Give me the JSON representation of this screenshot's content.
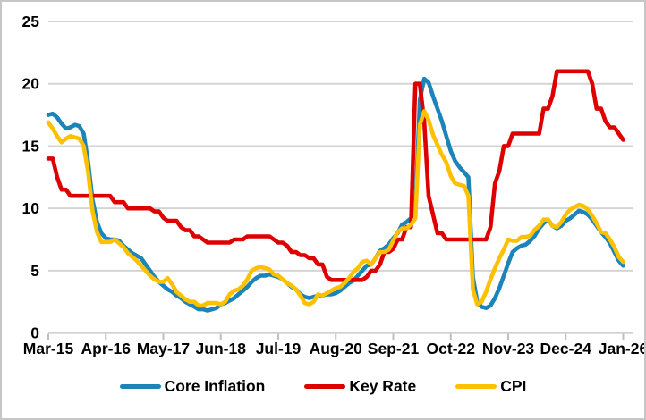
{
  "chart_data": {
    "type": "line",
    "title": "",
    "xlabel": "",
    "ylabel": "",
    "ylim": [
      0,
      25
    ],
    "y_ticks": [
      0,
      5,
      10,
      15,
      20,
      25
    ],
    "grid": "horizontal-only",
    "legend_position": "bottom-center",
    "x_unit": "monthly",
    "x_range": "Mar-2015 to Jan-2026",
    "x_tick_labels": [
      "Mar-15",
      "Apr-16",
      "May-17",
      "Jun-18",
      "Jul-19",
      "Aug-20",
      "Sep-21",
      "Oct-22",
      "Nov-23",
      "Dec-24",
      "Jan-26"
    ],
    "months_per_tick": 13,
    "series": [
      {
        "name": "Core Inflation",
        "color": "#1b84b8",
        "values": [
          17.5,
          17.6,
          17.3,
          16.8,
          16.4,
          16.5,
          16.7,
          16.6,
          16.0,
          13.7,
          10.7,
          8.9,
          8.0,
          7.6,
          7.5,
          7.5,
          7.4,
          7.0,
          6.7,
          6.4,
          6.2,
          6.0,
          5.5,
          5.0,
          4.5,
          4.1,
          3.8,
          3.5,
          3.3,
          3.0,
          2.8,
          2.5,
          2.3,
          2.1,
          1.9,
          1.9,
          1.8,
          1.9,
          2.0,
          2.3,
          2.4,
          2.6,
          2.8,
          3.1,
          3.4,
          3.7,
          4.1,
          4.4,
          4.6,
          4.6,
          4.7,
          4.6,
          4.5,
          4.3,
          4.0,
          3.7,
          3.5,
          3.1,
          2.9,
          2.8,
          2.9,
          3.0,
          3.0,
          3.1,
          3.1,
          3.2,
          3.4,
          3.7,
          4.0,
          4.2,
          4.6,
          5.0,
          5.4,
          5.5,
          6.0,
          6.6,
          6.8,
          7.1,
          7.6,
          8.0,
          8.7,
          8.9,
          9.2,
          9.7,
          18.7,
          20.4,
          20.1,
          19.0,
          18.0,
          17.0,
          15.8,
          14.6,
          13.8,
          13.3,
          12.9,
          12.5,
          4.5,
          2.5,
          2.1,
          2.0,
          2.2,
          2.8,
          3.6,
          4.6,
          5.6,
          6.5,
          6.8,
          7.0,
          7.1,
          7.4,
          7.8,
          8.4,
          8.8,
          9.1,
          8.6,
          8.4,
          8.6,
          9.0,
          9.2,
          9.5,
          9.8,
          9.7,
          9.5,
          9.1,
          8.6,
          8.1,
          7.7,
          7.2,
          6.5,
          5.8,
          5.4
        ]
      },
      {
        "name": "Key Rate",
        "color": "#de0000",
        "values": [
          14,
          14,
          12.5,
          11.5,
          11.5,
          11,
          11,
          11,
          11,
          11,
          11,
          11,
          11,
          11,
          11,
          10.5,
          10.5,
          10.5,
          10,
          10,
          10,
          10,
          10,
          10,
          9.75,
          9.75,
          9.25,
          9,
          9,
          9,
          8.5,
          8.25,
          8.25,
          7.75,
          7.75,
          7.5,
          7.25,
          7.25,
          7.25,
          7.25,
          7.25,
          7.25,
          7.5,
          7.5,
          7.5,
          7.75,
          7.75,
          7.75,
          7.75,
          7.75,
          7.75,
          7.5,
          7.25,
          7.25,
          7.0,
          6.5,
          6.5,
          6.25,
          6.25,
          6.0,
          6.0,
          5.5,
          5.5,
          4.5,
          4.25,
          4.25,
          4.25,
          4.25,
          4.25,
          4.25,
          4.25,
          4.25,
          4.5,
          5.0,
          5.0,
          5.5,
          6.5,
          6.5,
          6.75,
          7.5,
          7.5,
          8.5,
          8.5,
          20,
          20,
          17,
          11,
          9.5,
          8,
          8,
          7.5,
          7.5,
          7.5,
          7.5,
          7.5,
          7.5,
          7.5,
          7.5,
          7.5,
          7.5,
          8.5,
          12,
          13,
          15,
          15,
          16,
          16,
          16,
          16,
          16,
          16,
          16,
          18,
          18,
          19,
          21,
          21,
          21,
          21,
          21,
          21,
          21,
          21,
          20,
          18,
          18,
          17,
          16.5,
          16.5,
          16,
          15.5
        ]
      },
      {
        "name": "CPI",
        "color": "#ffc000",
        "values": [
          16.9,
          16.4,
          15.8,
          15.3,
          15.6,
          15.8,
          15.7,
          15.6,
          15.0,
          12.9,
          9.8,
          8.1,
          7.3,
          7.3,
          7.3,
          7.5,
          7.2,
          6.9,
          6.4,
          6.1,
          5.8,
          5.4,
          5.0,
          4.6,
          4.3,
          4.1,
          4.1,
          4.4,
          3.9,
          3.3,
          3.0,
          2.7,
          2.5,
          2.5,
          2.2,
          2.2,
          2.4,
          2.4,
          2.4,
          2.3,
          2.5,
          3.1,
          3.4,
          3.5,
          3.8,
          4.3,
          5.0,
          5.2,
          5.3,
          5.2,
          5.1,
          4.7,
          4.6,
          4.3,
          4.0,
          3.8,
          3.5,
          3.0,
          2.4,
          2.3,
          2.5,
          3.1,
          3.0,
          3.2,
          3.4,
          3.6,
          3.7,
          4.0,
          4.4,
          4.9,
          5.2,
          5.7,
          5.8,
          5.5,
          6.0,
          6.5,
          6.5,
          6.7,
          7.4,
          8.1,
          8.4,
          8.4,
          8.7,
          9.2,
          16.7,
          17.8,
          17.1,
          15.9,
          15.1,
          14.3,
          13.7,
          12.6,
          12.0,
          11.9,
          11.8,
          11.0,
          3.5,
          2.3,
          2.5,
          3.3,
          4.3,
          5.2,
          6.0,
          6.7,
          7.5,
          7.4,
          7.4,
          7.7,
          7.7,
          7.8,
          8.3,
          8.6,
          9.1,
          9.1,
          8.6,
          8.5,
          8.9,
          9.5,
          9.9,
          10.1,
          10.3,
          10.2,
          9.9,
          9.4,
          8.8,
          8.1,
          8.0,
          7.5,
          6.9,
          6.1,
          5.7
        ]
      }
    ]
  },
  "legend": {
    "items": [
      {
        "label": "Core Inflation",
        "color": "#1b84b8"
      },
      {
        "label": "Key Rate",
        "color": "#de0000"
      },
      {
        "label": "CPI",
        "color": "#ffc000"
      }
    ]
  },
  "style_colors": {
    "background": "#ffffff",
    "gridline": "#d4d4d4",
    "border": "#c6c6c6",
    "tick_label": "#000000"
  }
}
